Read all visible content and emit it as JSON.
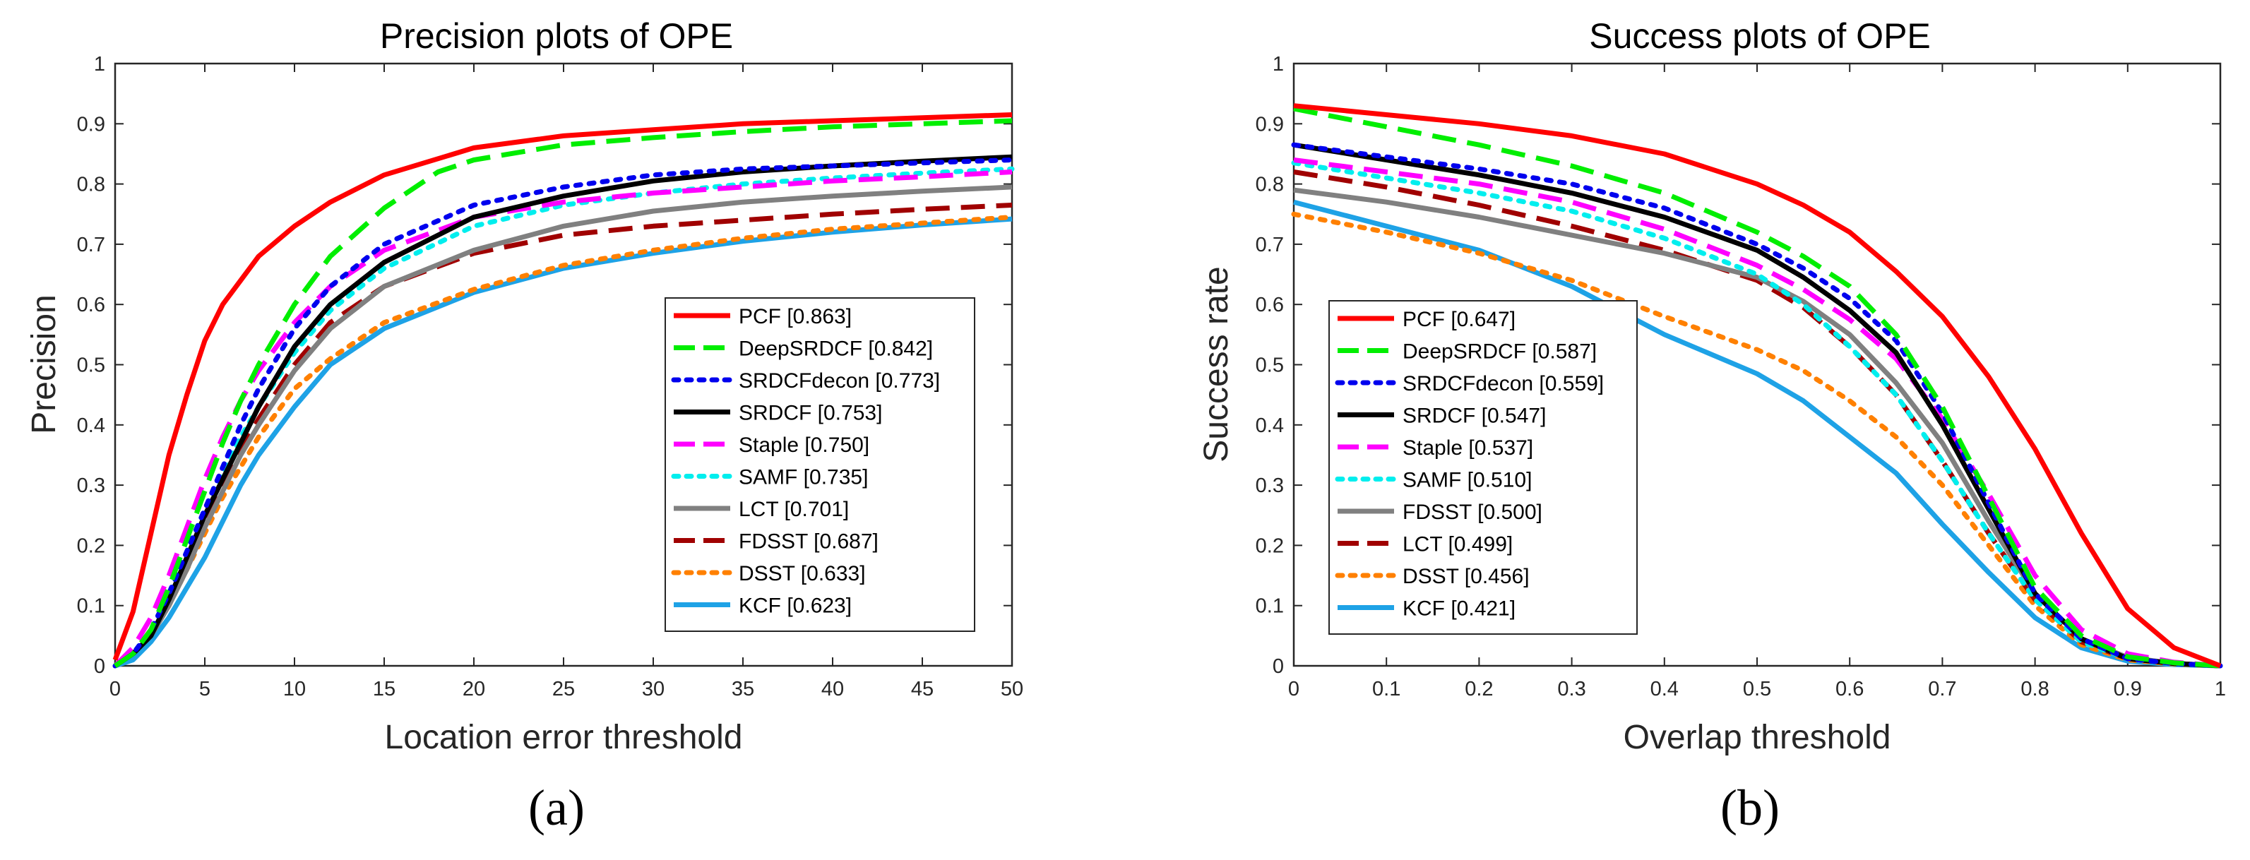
{
  "chart_data": [
    {
      "type": "line",
      "title": "Precision plots of OPE",
      "xlabel": "Location error threshold",
      "ylabel": "Precision",
      "panel_label": "(a)",
      "xlim": [
        0,
        50
      ],
      "ylim": [
        0,
        1
      ],
      "xticks": [
        "0",
        "5",
        "10",
        "15",
        "20",
        "25",
        "30",
        "35",
        "40",
        "45",
        "50"
      ],
      "yticks": [
        "0",
        "0.1",
        "0.2",
        "0.3",
        "0.4",
        "0.5",
        "0.6",
        "0.7",
        "0.8",
        "0.9",
        "1"
      ],
      "grid": false,
      "legend_position": "lower-right",
      "series": [
        {
          "name": "PCF [0.863]",
          "color": "#ff0000",
          "style": "solid",
          "x": [
            0,
            1,
            2,
            3,
            4,
            5,
            6,
            7,
            8,
            10,
            12,
            15,
            20,
            25,
            30,
            35,
            40,
            45,
            50
          ],
          "values": [
            0.01,
            0.09,
            0.22,
            0.35,
            0.45,
            0.54,
            0.6,
            0.64,
            0.68,
            0.73,
            0.77,
            0.815,
            0.86,
            0.88,
            0.89,
            0.9,
            0.905,
            0.91,
            0.915
          ]
        },
        {
          "name": "DeepSRDCF [0.842]",
          "color": "#00ee00",
          "style": "dash",
          "x": [
            0,
            1,
            2,
            3,
            4,
            5,
            6,
            7,
            8,
            10,
            12,
            15,
            18,
            20,
            25,
            30,
            35,
            40,
            45,
            50
          ],
          "values": [
            0.0,
            0.02,
            0.06,
            0.13,
            0.21,
            0.29,
            0.37,
            0.44,
            0.5,
            0.6,
            0.68,
            0.76,
            0.82,
            0.84,
            0.865,
            0.877,
            0.887,
            0.895,
            0.9,
            0.905
          ]
        },
        {
          "name": "SRDCFdecon [0.773]",
          "color": "#0000ee",
          "style": "dot",
          "x": [
            0,
            1,
            2,
            3,
            4,
            5,
            6,
            7,
            8,
            10,
            12,
            15,
            20,
            25,
            30,
            35,
            40,
            45,
            50
          ],
          "values": [
            0.0,
            0.02,
            0.06,
            0.12,
            0.19,
            0.26,
            0.33,
            0.4,
            0.46,
            0.56,
            0.63,
            0.7,
            0.765,
            0.795,
            0.815,
            0.825,
            0.83,
            0.835,
            0.84
          ]
        },
        {
          "name": "SRDCF [0.753]",
          "color": "#000000",
          "style": "solid",
          "x": [
            0,
            1,
            2,
            3,
            4,
            5,
            6,
            7,
            8,
            10,
            12,
            15,
            20,
            25,
            30,
            35,
            40,
            45,
            50
          ],
          "values": [
            0.0,
            0.02,
            0.05,
            0.11,
            0.18,
            0.25,
            0.31,
            0.37,
            0.43,
            0.53,
            0.6,
            0.67,
            0.745,
            0.78,
            0.805,
            0.82,
            0.83,
            0.838,
            0.845
          ]
        },
        {
          "name": "Staple [0.750]",
          "color": "#ff00ff",
          "style": "dash",
          "x": [
            0,
            1,
            2,
            3,
            4,
            5,
            6,
            7,
            8,
            10,
            12,
            15,
            20,
            25,
            30,
            35,
            40,
            45,
            50
          ],
          "values": [
            0.0,
            0.03,
            0.08,
            0.15,
            0.23,
            0.31,
            0.38,
            0.44,
            0.49,
            0.57,
            0.63,
            0.69,
            0.745,
            0.77,
            0.785,
            0.795,
            0.805,
            0.812,
            0.82
          ]
        },
        {
          "name": "SAMF [0.735]",
          "color": "#00eeee",
          "style": "dot",
          "x": [
            0,
            1,
            2,
            3,
            4,
            5,
            6,
            7,
            8,
            10,
            12,
            15,
            20,
            25,
            30,
            35,
            40,
            45,
            50
          ],
          "values": [
            0.0,
            0.02,
            0.06,
            0.12,
            0.19,
            0.26,
            0.32,
            0.38,
            0.43,
            0.52,
            0.59,
            0.66,
            0.73,
            0.765,
            0.785,
            0.8,
            0.81,
            0.818,
            0.825
          ]
        },
        {
          "name": "LCT [0.701]",
          "color": "#808080",
          "style": "solid",
          "x": [
            0,
            1,
            2,
            3,
            4,
            5,
            6,
            7,
            8,
            10,
            12,
            15,
            20,
            25,
            30,
            35,
            40,
            45,
            50
          ],
          "values": [
            0.0,
            0.02,
            0.05,
            0.1,
            0.16,
            0.23,
            0.29,
            0.35,
            0.4,
            0.49,
            0.56,
            0.63,
            0.69,
            0.73,
            0.755,
            0.77,
            0.78,
            0.788,
            0.795
          ]
        },
        {
          "name": "FDSST [0.687]",
          "color": "#a00000",
          "style": "dash",
          "x": [
            0,
            1,
            2,
            3,
            4,
            5,
            6,
            7,
            8,
            10,
            12,
            15,
            20,
            25,
            30,
            35,
            40,
            45,
            50
          ],
          "values": [
            0.0,
            0.02,
            0.06,
            0.11,
            0.17,
            0.24,
            0.3,
            0.36,
            0.41,
            0.5,
            0.57,
            0.63,
            0.685,
            0.715,
            0.73,
            0.74,
            0.75,
            0.758,
            0.765
          ]
        },
        {
          "name": "DSST [0.633]",
          "color": "#ff8000",
          "style": "dot",
          "x": [
            0,
            1,
            2,
            3,
            4,
            5,
            6,
            7,
            8,
            10,
            12,
            15,
            20,
            25,
            30,
            35,
            40,
            45,
            50
          ],
          "values": [
            0.0,
            0.02,
            0.05,
            0.1,
            0.16,
            0.22,
            0.28,
            0.33,
            0.38,
            0.46,
            0.51,
            0.57,
            0.625,
            0.665,
            0.69,
            0.71,
            0.725,
            0.735,
            0.745
          ]
        },
        {
          "name": "KCF [0.623]",
          "color": "#1ea2e6",
          "style": "solid",
          "x": [
            0,
            1,
            2,
            3,
            4,
            5,
            6,
            7,
            8,
            10,
            12,
            15,
            20,
            25,
            30,
            35,
            40,
            45,
            50
          ],
          "values": [
            0.0,
            0.01,
            0.04,
            0.08,
            0.13,
            0.18,
            0.24,
            0.3,
            0.35,
            0.43,
            0.5,
            0.56,
            0.62,
            0.66,
            0.685,
            0.705,
            0.72,
            0.732,
            0.742
          ]
        }
      ]
    },
    {
      "type": "line",
      "title": "Success plots of OPE",
      "xlabel": "Overlap threshold",
      "ylabel": "Success rate",
      "panel_label": "(b)",
      "xlim": [
        0,
        1
      ],
      "ylim": [
        0,
        1
      ],
      "xticks": [
        "0",
        "0.1",
        "0.2",
        "0.3",
        "0.4",
        "0.5",
        "0.6",
        "0.7",
        "0.8",
        "0.9",
        "1"
      ],
      "yticks": [
        "0",
        "0.1",
        "0.2",
        "0.3",
        "0.4",
        "0.5",
        "0.6",
        "0.7",
        "0.8",
        "0.9",
        "1"
      ],
      "grid": false,
      "legend_position": "lower-left",
      "series": [
        {
          "name": "PCF [0.647]",
          "color": "#ff0000",
          "style": "solid",
          "x": [
            0,
            0.1,
            0.2,
            0.3,
            0.4,
            0.5,
            0.55,
            0.6,
            0.65,
            0.7,
            0.75,
            0.8,
            0.85,
            0.9,
            0.95,
            1.0
          ],
          "values": [
            0.93,
            0.915,
            0.9,
            0.88,
            0.85,
            0.8,
            0.765,
            0.72,
            0.655,
            0.58,
            0.48,
            0.36,
            0.22,
            0.095,
            0.03,
            0.0
          ]
        },
        {
          "name": "DeepSRDCF [0.587]",
          "color": "#00ee00",
          "style": "dash",
          "x": [
            0,
            0.1,
            0.2,
            0.3,
            0.4,
            0.5,
            0.55,
            0.6,
            0.65,
            0.7,
            0.75,
            0.8,
            0.85,
            0.9,
            0.95,
            1.0
          ],
          "values": [
            0.925,
            0.895,
            0.865,
            0.83,
            0.785,
            0.72,
            0.68,
            0.63,
            0.55,
            0.43,
            0.28,
            0.13,
            0.05,
            0.015,
            0.005,
            0.0
          ]
        },
        {
          "name": "SRDCFdecon [0.559]",
          "color": "#0000ee",
          "style": "dot",
          "x": [
            0,
            0.1,
            0.2,
            0.3,
            0.4,
            0.5,
            0.55,
            0.6,
            0.65,
            0.7,
            0.75,
            0.8,
            0.85,
            0.9,
            0.95,
            1.0
          ],
          "values": [
            0.865,
            0.845,
            0.825,
            0.8,
            0.76,
            0.7,
            0.66,
            0.61,
            0.54,
            0.42,
            0.27,
            0.12,
            0.045,
            0.012,
            0.004,
            0.0
          ]
        },
        {
          "name": "SRDCF [0.547]",
          "color": "#000000",
          "style": "solid",
          "x": [
            0,
            0.1,
            0.2,
            0.3,
            0.4,
            0.5,
            0.55,
            0.6,
            0.65,
            0.7,
            0.75,
            0.8,
            0.85,
            0.9,
            0.95,
            1.0
          ],
          "values": [
            0.865,
            0.84,
            0.815,
            0.785,
            0.745,
            0.69,
            0.645,
            0.59,
            0.52,
            0.4,
            0.26,
            0.12,
            0.045,
            0.012,
            0.004,
            0.0
          ]
        },
        {
          "name": "Staple [0.537]",
          "color": "#ff00ff",
          "style": "dash",
          "x": [
            0,
            0.1,
            0.2,
            0.3,
            0.4,
            0.5,
            0.55,
            0.6,
            0.65,
            0.7,
            0.75,
            0.8,
            0.85,
            0.9,
            0.95,
            1.0
          ],
          "values": [
            0.84,
            0.82,
            0.8,
            0.77,
            0.725,
            0.665,
            0.625,
            0.575,
            0.51,
            0.41,
            0.285,
            0.15,
            0.06,
            0.02,
            0.006,
            0.0
          ]
        },
        {
          "name": "SAMF [0.510]",
          "color": "#00eeee",
          "style": "dot",
          "x": [
            0,
            0.1,
            0.2,
            0.3,
            0.4,
            0.5,
            0.55,
            0.6,
            0.65,
            0.7,
            0.75,
            0.8,
            0.85,
            0.9,
            0.95,
            1.0
          ],
          "values": [
            0.835,
            0.81,
            0.785,
            0.755,
            0.71,
            0.65,
            0.6,
            0.53,
            0.45,
            0.34,
            0.22,
            0.11,
            0.04,
            0.012,
            0.004,
            0.0
          ]
        },
        {
          "name": "FDSST [0.500]",
          "color": "#808080",
          "style": "solid",
          "x": [
            0,
            0.1,
            0.2,
            0.3,
            0.4,
            0.5,
            0.55,
            0.6,
            0.65,
            0.7,
            0.75,
            0.8,
            0.85,
            0.9,
            0.95,
            1.0
          ],
          "values": [
            0.79,
            0.77,
            0.745,
            0.715,
            0.685,
            0.645,
            0.605,
            0.55,
            0.47,
            0.37,
            0.24,
            0.12,
            0.045,
            0.014,
            0.004,
            0.0
          ]
        },
        {
          "name": "LCT [0.499]",
          "color": "#a00000",
          "style": "dash",
          "x": [
            0,
            0.1,
            0.2,
            0.3,
            0.4,
            0.5,
            0.55,
            0.6,
            0.65,
            0.7,
            0.75,
            0.8,
            0.85,
            0.9,
            0.95,
            1.0
          ],
          "values": [
            0.82,
            0.795,
            0.765,
            0.73,
            0.69,
            0.64,
            0.595,
            0.53,
            0.45,
            0.34,
            0.22,
            0.11,
            0.04,
            0.012,
            0.004,
            0.0
          ]
        },
        {
          "name": "DSST [0.456]",
          "color": "#ff8000",
          "style": "dot",
          "x": [
            0,
            0.1,
            0.2,
            0.3,
            0.4,
            0.5,
            0.55,
            0.6,
            0.65,
            0.7,
            0.75,
            0.8,
            0.85,
            0.9,
            0.95,
            1.0
          ],
          "values": [
            0.75,
            0.72,
            0.685,
            0.64,
            0.58,
            0.525,
            0.49,
            0.44,
            0.38,
            0.3,
            0.2,
            0.1,
            0.035,
            0.01,
            0.003,
            0.0
          ]
        },
        {
          "name": "KCF [0.421]",
          "color": "#1ea2e6",
          "style": "solid",
          "x": [
            0,
            0.1,
            0.2,
            0.3,
            0.4,
            0.5,
            0.55,
            0.6,
            0.65,
            0.7,
            0.75,
            0.8,
            0.85,
            0.9,
            0.95,
            1.0
          ],
          "values": [
            0.77,
            0.73,
            0.69,
            0.63,
            0.55,
            0.485,
            0.44,
            0.38,
            0.32,
            0.235,
            0.155,
            0.08,
            0.03,
            0.008,
            0.002,
            0.0
          ]
        }
      ]
    }
  ]
}
